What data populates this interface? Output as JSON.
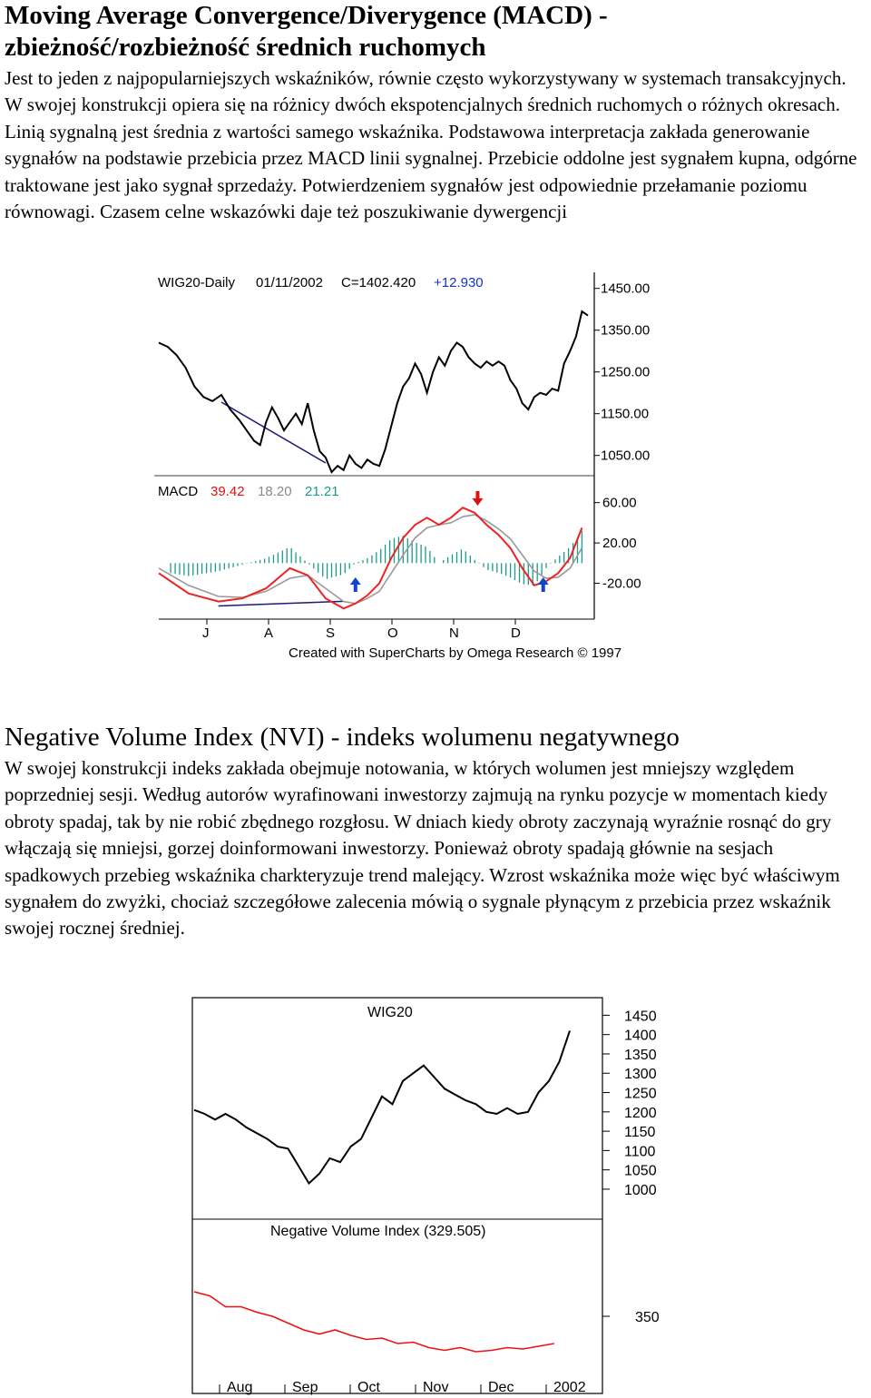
{
  "section1": {
    "title_line1": "Moving Average Convergence/Diverygence (MACD) -",
    "title_line2": "zbieżność/rozbieżność średnich ruchomych",
    "paragraph": "Jest to jeden z najpopularniejszych wskaźników, równie często wykorzystywany w systemach transakcyjnych. W swojej konstrukcji opiera się na różnicy dwóch ekspotencjalnych średnich ruchomych o różnych okresach. Linią sygnalną jest średnia z wartości samego wskaźnika. Podstawowa interpretacja zakłada generowanie sygnałów na podstawie przebicia przez MACD linii sygnalnej. Przebicie oddolne jest sygnałem kupna, odgórne traktowane jest jako sygnał sprzedaży. Potwierdzeniem sygnałów jest odpowiednie przełamanie poziomu równowagi. Czasem celne wskazówki daje też poszukiwanie dywergencji"
  },
  "section2": {
    "title": "Negative Volume Index (NVI) - indeks wolumenu negatywnego",
    "paragraph": "W swojej konstrukcji indeks zakłada obejmuje notowania, w których wolumen jest mniejszy względem poprzedniej sesji. Według autorów wyrafinowani inwestorzy zajmują na rynku pozycje w momentach kiedy obroty spadaj, tak by nie robić zbędnego rozgłosu. W dniach kiedy obroty zaczynają wyraźnie rosnąć do gry włączają się mniejsi, gorzej doinformowani inwestorzy. Ponieważ obroty spadają głównie na sesjach spadkowych przebieg wskaźnika charkteryzuje trend malejący. Wzrost wskaźnika może więc być właściwym sygnałem do zwyżki, chociaż szczegółowe zalecenia mówią o sygnale płynącym z przebicia przez wskaźnik swojej rocznej średniej."
  },
  "colors": {
    "price": "#000000",
    "macd": "#ee2222",
    "signal": "#999999",
    "histogram": "#1a9a8a",
    "trendline": "#1a1a7a",
    "sell_arrow": "#dd1111",
    "buy_arrow": "#1144cc",
    "nvi": "#ee1111"
  },
  "chart_data": [
    {
      "type": "line",
      "subtype": "price + MACD indicator",
      "title_parts": {
        "name": "WIG20-Daily",
        "date": "01/11/2002",
        "close": "C=1402.420",
        "change": "+12.930"
      },
      "price_ticks": [
        "1450.00",
        "1350.00",
        "1250.00",
        "1150.00",
        "1050.00"
      ],
      "price_tick_values": [
        1450,
        1350,
        1250,
        1150,
        1050
      ],
      "price_ylim": [
        995,
        1495
      ],
      "price_series": [
        [
          0,
          1320
        ],
        [
          3,
          1310
        ],
        [
          6,
          1290
        ],
        [
          9,
          1260
        ],
        [
          12,
          1215
        ],
        [
          15,
          1190
        ],
        [
          18,
          1180
        ],
        [
          21,
          1195
        ],
        [
          24,
          1160
        ],
        [
          27,
          1135
        ],
        [
          30,
          1105
        ],
        [
          32,
          1085
        ],
        [
          34,
          1075
        ],
        [
          36,
          1130
        ],
        [
          38,
          1165
        ],
        [
          40,
          1140
        ],
        [
          42,
          1110
        ],
        [
          44,
          1130
        ],
        [
          46,
          1150
        ],
        [
          48,
          1125
        ],
        [
          50,
          1175
        ],
        [
          52,
          1110
        ],
        [
          54,
          1060
        ],
        [
          56,
          1045
        ],
        [
          58,
          1010
        ],
        [
          60,
          1025
        ],
        [
          62,
          1015
        ],
        [
          64,
          1050
        ],
        [
          66,
          1030
        ],
        [
          68,
          1020
        ],
        [
          70,
          1040
        ],
        [
          72,
          1030
        ],
        [
          74,
          1025
        ],
        [
          76,
          1065
        ],
        [
          78,
          1120
        ],
        [
          80,
          1175
        ],
        [
          82,
          1215
        ],
        [
          84,
          1235
        ],
        [
          86,
          1270
        ],
        [
          88,
          1245
        ],
        [
          90,
          1200
        ],
        [
          92,
          1250
        ],
        [
          94,
          1285
        ],
        [
          96,
          1265
        ],
        [
          98,
          1300
        ],
        [
          100,
          1320
        ],
        [
          102,
          1310
        ],
        [
          104,
          1285
        ],
        [
          106,
          1270
        ],
        [
          108,
          1260
        ],
        [
          110,
          1275
        ],
        [
          112,
          1265
        ],
        [
          114,
          1275
        ],
        [
          116,
          1265
        ],
        [
          118,
          1230
        ],
        [
          120,
          1210
        ],
        [
          122,
          1175
        ],
        [
          124,
          1160
        ],
        [
          126,
          1190
        ],
        [
          128,
          1200
        ],
        [
          130,
          1195
        ],
        [
          132,
          1210
        ],
        [
          134,
          1205
        ],
        [
          136,
          1270
        ],
        [
          138,
          1300
        ],
        [
          140,
          1335
        ],
        [
          142,
          1395
        ],
        [
          144,
          1385
        ]
      ],
      "macd_label": "MACD",
      "macd_values_shown": [
        "39.42",
        "18.20",
        "21.21"
      ],
      "macd_ticks": [
        "60.00",
        "20.00",
        "-20.00"
      ],
      "macd_tick_values": [
        60,
        20,
        -20
      ],
      "macd_ylim": [
        -60,
        75
      ],
      "macd_series": [
        [
          0,
          -10
        ],
        [
          10,
          -30
        ],
        [
          20,
          -38
        ],
        [
          28,
          -35
        ],
        [
          36,
          -25
        ],
        [
          44,
          -5
        ],
        [
          50,
          -12
        ],
        [
          56,
          -35
        ],
        [
          62,
          -45
        ],
        [
          66,
          -40
        ],
        [
          70,
          -32
        ],
        [
          74,
          -20
        ],
        [
          78,
          5
        ],
        [
          82,
          25
        ],
        [
          86,
          38
        ],
        [
          90,
          45
        ],
        [
          94,
          38
        ],
        [
          98,
          45
        ],
        [
          102,
          55
        ],
        [
          106,
          50
        ],
        [
          110,
          38
        ],
        [
          114,
          28
        ],
        [
          118,
          15
        ],
        [
          122,
          -5
        ],
        [
          126,
          -22
        ],
        [
          130,
          -18
        ],
        [
          134,
          -10
        ],
        [
          138,
          5
        ],
        [
          142,
          35
        ]
      ],
      "signal_series": [
        [
          0,
          -5
        ],
        [
          10,
          -22
        ],
        [
          20,
          -33
        ],
        [
          28,
          -34
        ],
        [
          36,
          -28
        ],
        [
          44,
          -15
        ],
        [
          50,
          -12
        ],
        [
          56,
          -25
        ],
        [
          62,
          -38
        ],
        [
          66,
          -40
        ],
        [
          70,
          -35
        ],
        [
          74,
          -28
        ],
        [
          78,
          -10
        ],
        [
          82,
          8
        ],
        [
          86,
          25
        ],
        [
          90,
          35
        ],
        [
          94,
          38
        ],
        [
          98,
          40
        ],
        [
          102,
          46
        ],
        [
          106,
          48
        ],
        [
          110,
          42
        ],
        [
          114,
          34
        ],
        [
          118,
          24
        ],
        [
          122,
          8
        ],
        [
          126,
          -8
        ],
        [
          130,
          -15
        ],
        [
          134,
          -14
        ],
        [
          138,
          -5
        ],
        [
          142,
          15
        ]
      ],
      "x_ticks": [
        "J",
        "A",
        "S",
        "O",
        "N",
        "D"
      ],
      "sell_arrows": [
        107
      ],
      "buy_arrows": [
        66,
        129
      ],
      "credit": "Created with SuperCharts by Omega Research © 1997"
    },
    {
      "type": "line",
      "subtype": "price + Negative Volume Index",
      "title": "WIG20",
      "price_ticks": [
        "1450",
        "1400",
        "1350",
        "1300",
        "1250",
        "1200",
        "1150",
        "1100",
        "1050",
        "1000"
      ],
      "price_tick_values": [
        1450,
        1400,
        1350,
        1300,
        1250,
        1200,
        1150,
        1100,
        1050,
        1000
      ],
      "price_ylim": [
        960,
        1465
      ],
      "price_series": [
        [
          0,
          1205
        ],
        [
          4,
          1195
        ],
        [
          8,
          1180
        ],
        [
          12,
          1195
        ],
        [
          16,
          1180
        ],
        [
          20,
          1160
        ],
        [
          24,
          1145
        ],
        [
          28,
          1130
        ],
        [
          32,
          1110
        ],
        [
          36,
          1105
        ],
        [
          40,
          1060
        ],
        [
          44,
          1015
        ],
        [
          48,
          1040
        ],
        [
          52,
          1080
        ],
        [
          56,
          1070
        ],
        [
          60,
          1110
        ],
        [
          64,
          1130
        ],
        [
          68,
          1185
        ],
        [
          72,
          1240
        ],
        [
          76,
          1220
        ],
        [
          80,
          1280
        ],
        [
          84,
          1300
        ],
        [
          88,
          1320
        ],
        [
          92,
          1290
        ],
        [
          96,
          1260
        ],
        [
          100,
          1245
        ],
        [
          104,
          1230
        ],
        [
          108,
          1220
        ],
        [
          112,
          1200
        ],
        [
          116,
          1195
        ],
        [
          120,
          1210
        ],
        [
          124,
          1195
        ],
        [
          128,
          1200
        ],
        [
          132,
          1250
        ],
        [
          136,
          1280
        ],
        [
          140,
          1330
        ],
        [
          144,
          1410
        ]
      ],
      "nvi_label": "Negative Volume Index (329.505)",
      "nvi_ticks": [
        "350"
      ],
      "nvi_tick_values": [
        350
      ],
      "nvi_ylim": [
        300,
        400
      ],
      "nvi_series": [
        [
          0,
          368
        ],
        [
          6,
          365
        ],
        [
          12,
          357
        ],
        [
          18,
          357
        ],
        [
          24,
          353
        ],
        [
          30,
          350
        ],
        [
          36,
          345
        ],
        [
          42,
          340
        ],
        [
          48,
          337
        ],
        [
          54,
          340
        ],
        [
          60,
          336
        ],
        [
          66,
          333
        ],
        [
          72,
          334
        ],
        [
          78,
          330
        ],
        [
          84,
          331
        ],
        [
          90,
          327
        ],
        [
          96,
          325
        ],
        [
          102,
          327
        ],
        [
          108,
          324
        ],
        [
          114,
          325
        ],
        [
          120,
          327
        ],
        [
          126,
          326
        ],
        [
          132,
          328
        ],
        [
          138,
          330
        ]
      ],
      "x_ticks": [
        "Aug",
        "Sep",
        "Oct",
        "Nov",
        "Dec",
        "2002"
      ]
    }
  ]
}
